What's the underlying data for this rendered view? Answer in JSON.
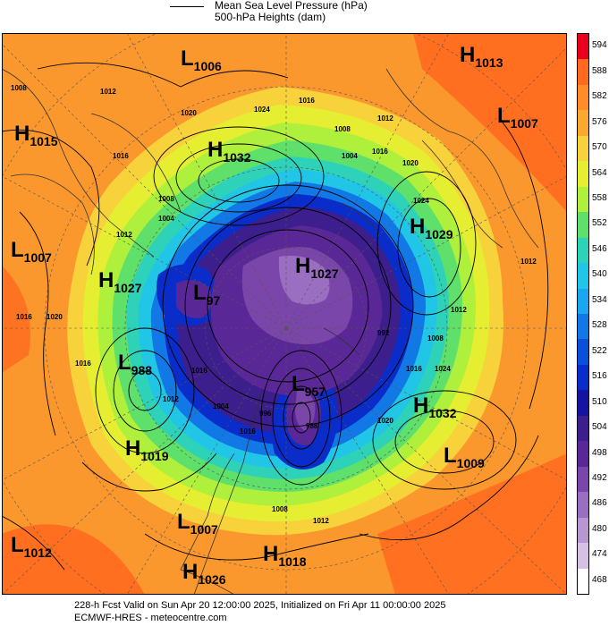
{
  "legend": {
    "mslp_label": "Mean Sea Level Pressure (hPa)",
    "heights_label": "500-hPa Heights (dam)"
  },
  "colorbar": {
    "levels": [
      "594",
      "588",
      "582",
      "576",
      "570",
      "564",
      "558",
      "552",
      "546",
      "540",
      "534",
      "528",
      "522",
      "516",
      "510",
      "504",
      "498",
      "492",
      "486",
      "480",
      "474",
      "468"
    ],
    "colors": [
      "#e8001e",
      "#ff6a1e",
      "#ff8c28",
      "#f9a832",
      "#f7d23a",
      "#e6ee32",
      "#aef03c",
      "#5ee06a",
      "#2ed2b8",
      "#21c6e6",
      "#1aa6f0",
      "#1278e6",
      "#0a50d8",
      "#0a2cc8",
      "#1414a0",
      "#3c1e8c",
      "#5a2896",
      "#7a46aa",
      "#9a6ec0",
      "#b896d2",
      "#d6c0e6",
      "#ffffff"
    ]
  },
  "systems": [
    {
      "id": "h1013",
      "type": "H",
      "value": "1013"
    },
    {
      "id": "l1006",
      "type": "L",
      "value": "1006"
    },
    {
      "id": "l1007ne",
      "type": "L",
      "value": "1007"
    },
    {
      "id": "h1015",
      "type": "H",
      "value": "1015"
    },
    {
      "id": "h1032n",
      "type": "H",
      "value": "1032"
    },
    {
      "id": "h1029",
      "type": "H",
      "value": "1029"
    },
    {
      "id": "l1007w",
      "type": "L",
      "value": "1007"
    },
    {
      "id": "h1027w",
      "type": "H",
      "value": "1027"
    },
    {
      "id": "h1027c",
      "type": "H",
      "value": "1027"
    },
    {
      "id": "l97",
      "type": "L",
      "value": "97"
    },
    {
      "id": "l988",
      "type": "L",
      "value": "988"
    },
    {
      "id": "l957",
      "type": "L",
      "value": "957"
    },
    {
      "id": "h1032se",
      "type": "H",
      "value": "1032"
    },
    {
      "id": "h1019",
      "type": "H",
      "value": "1019"
    },
    {
      "id": "l1009",
      "type": "L",
      "value": "1009"
    },
    {
      "id": "l1007s",
      "type": "L",
      "value": "1007"
    },
    {
      "id": "l1012",
      "type": "L",
      "value": "1012"
    },
    {
      "id": "h1018",
      "type": "H",
      "value": "1018"
    },
    {
      "id": "h1026",
      "type": "H",
      "value": "1026"
    }
  ],
  "isobar_labels": [
    "1008",
    "1012",
    "1020",
    "1024",
    "1016",
    "1008",
    "1004",
    "1012",
    "1016",
    "1020",
    "1024",
    "1008",
    "1004",
    "1012",
    "1016",
    "1020",
    "1012",
    "1016",
    "1016",
    "1012",
    "992",
    "1008",
    "1016",
    "1024",
    "1012",
    "1004",
    "996",
    "988",
    "1020",
    "1016",
    "1008",
    "1012",
    "1016"
  ],
  "footer": {
    "line1": "228-h Fcst Valid on Sun Apr 20 12:00:00 2025, Initialized on Fri Apr 11 00:00:00 2025",
    "line2": "ECMWF-HRES  - meteocentre.com"
  }
}
